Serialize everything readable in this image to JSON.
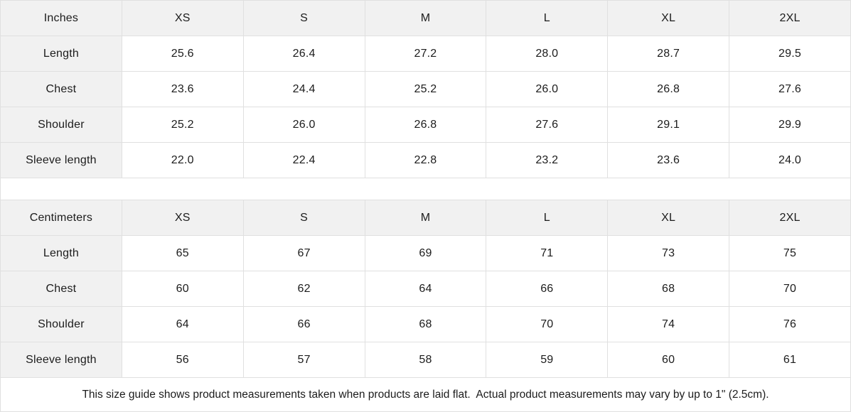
{
  "colors": {
    "header_bg": "#f1f1f1",
    "border": "#e0e0e0",
    "text": "#1c1c1c",
    "page_bg": "#ffffff"
  },
  "tables": [
    {
      "unit_label": "Inches",
      "sizes": [
        "XS",
        "S",
        "M",
        "L",
        "XL",
        "2XL"
      ],
      "rows": [
        {
          "label": "Length",
          "values": [
            "25.6",
            "26.4",
            "27.2",
            "28.0",
            "28.7",
            "29.5"
          ]
        },
        {
          "label": "Chest",
          "values": [
            "23.6",
            "24.4",
            "25.2",
            "26.0",
            "26.8",
            "27.6"
          ]
        },
        {
          "label": "Shoulder",
          "values": [
            "25.2",
            "26.0",
            "26.8",
            "27.6",
            "29.1",
            "29.9"
          ]
        },
        {
          "label": "Sleeve length",
          "values": [
            "22.0",
            "22.4",
            "22.8",
            "23.2",
            "23.6",
            "24.0"
          ]
        }
      ]
    },
    {
      "unit_label": "Centimeters",
      "sizes": [
        "XS",
        "S",
        "M",
        "L",
        "XL",
        "2XL"
      ],
      "rows": [
        {
          "label": "Length",
          "values": [
            "65",
            "67",
            "69",
            "71",
            "73",
            "75"
          ]
        },
        {
          "label": "Chest",
          "values": [
            "60",
            "62",
            "64",
            "66",
            "68",
            "70"
          ]
        },
        {
          "label": "Shoulder",
          "values": [
            "64",
            "66",
            "68",
            "70",
            "74",
            "76"
          ]
        },
        {
          "label": "Sleeve length",
          "values": [
            "56",
            "57",
            "58",
            "59",
            "60",
            "61"
          ]
        }
      ]
    }
  ],
  "footer": {
    "note": "This size guide shows product measurements taken when products are laid flat.  Actual product measurements may vary by up to 1\" (2.5cm)."
  }
}
